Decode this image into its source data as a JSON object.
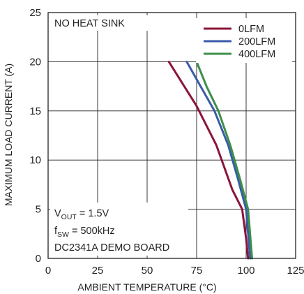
{
  "chart_data": {
    "type": "line",
    "title": "",
    "xlabel": "AMBIENT TEMPERATURE (°C)",
    "ylabel": "MAXIMUM LOAD CURRENT (A)",
    "xlim": [
      0,
      125
    ],
    "ylim": [
      0,
      25
    ],
    "x_ticks": [
      0,
      25,
      50,
      75,
      100,
      125
    ],
    "y_ticks": [
      0,
      5,
      10,
      15,
      20,
      25
    ],
    "grid": true,
    "legend_position": "top-right",
    "series": [
      {
        "name": "0LFM",
        "color": "#8b1538",
        "points": [
          [
            61,
            20
          ],
          [
            75,
            15.5
          ],
          [
            85,
            11.5
          ],
          [
            93,
            7
          ],
          [
            98,
            5
          ],
          [
            100,
            2
          ],
          [
            101,
            0
          ]
        ]
      },
      {
        "name": "200LFM",
        "color": "#3a5ba8",
        "points": [
          [
            70,
            20
          ],
          [
            77,
            17.5
          ],
          [
            84,
            15
          ],
          [
            91,
            11.5
          ],
          [
            96,
            8
          ],
          [
            100,
            5
          ],
          [
            102,
            0
          ]
        ]
      },
      {
        "name": "400LFM",
        "color": "#3c8f4a",
        "points": [
          [
            75,
            20
          ],
          [
            80,
            17.5
          ],
          [
            86,
            15
          ],
          [
            92,
            11.5
          ],
          [
            97,
            8
          ],
          [
            101,
            5
          ],
          [
            103,
            0
          ]
        ]
      }
    ],
    "annotations": {
      "top_left": "NO HEAT SINK",
      "vout_prefix": "V",
      "vout_sub": "OUT",
      "vout_value": " = 1.5V",
      "fsw_prefix": "f",
      "fsw_sub": "SW",
      "fsw_value": " = 500kHz",
      "board": "DC2341A DEMO BOARD"
    }
  }
}
